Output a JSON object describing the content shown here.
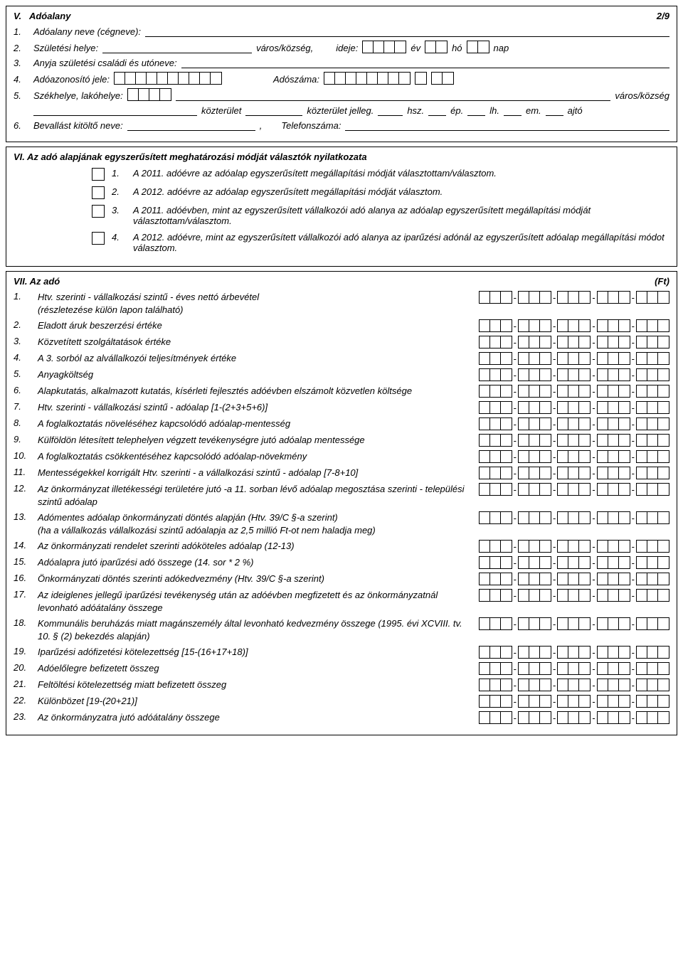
{
  "page": {
    "number": "2/9"
  },
  "sectionV": {
    "heading_num": "V.",
    "heading": "Adóalany",
    "rows": {
      "r1_num": "1.",
      "r1_label": "Adóalany neve (cégneve):",
      "r2_num": "2.",
      "r2_label": "Születési helye:",
      "r2_city": "város/község,",
      "r2_time": "ideje:",
      "r2_year": "év",
      "r2_month": "hó",
      "r2_day": "nap",
      "r3_num": "3.",
      "r3_label": "Anyja születési családi és utóneve:",
      "r4_num": "4.",
      "r4_label": "Adóazonosító jele:",
      "r4_taxnum": "Adószáma:",
      "r5_num": "5.",
      "r5_label": "Székhelye, lakóhelye:",
      "r5_city": "város/község",
      "r5b_koz": "közterület",
      "r5b_kozj": "közterület jelleg.",
      "r5b_hsz": "hsz.",
      "r5b_ep": "ép.",
      "r5b_lh": "lh.",
      "r5b_em": "em.",
      "r5b_ajto": "ajtó",
      "r6_num": "6.",
      "r6_label": "Bevallást kitöltő neve:",
      "r6_comma": ",",
      "r6_tel": "Telefonszáma:"
    }
  },
  "sectionVI": {
    "heading": "VI. Az adó alapjának egyszerűsített meghatározási módját választók nyilatkozata",
    "items": [
      {
        "num": "1.",
        "text": "A 2011. adóévre az adóalap egyszerűsített megállapítási módját választottam/választom."
      },
      {
        "num": "2.",
        "text": "A 2012. adóévre az adóalap egyszerűsített megállapítási módját választom."
      },
      {
        "num": "3.",
        "text": "A 2011. adóévben, mint az egyszerűsített vállalkozói adó alanya az adóalap egyszerűsített megállapítási módját választottam/választom."
      },
      {
        "num": "4.",
        "text": "A 2012. adóévre, mint az egyszerűsített vállalkozói adó alanya az iparűzési adónál az egyszerűsített adóalap megállapítási módot választom."
      }
    ]
  },
  "sectionVII": {
    "heading": "VII. Az adó",
    "unit": "(Ft)",
    "rows": [
      {
        "num": "1.",
        "text": "Htv. szerinti - vállalkozási szintű - éves nettó árbevétel",
        "sub": "(részletezése külön lapon található)"
      },
      {
        "num": "2.",
        "text": "Eladott áruk beszerzési értéke"
      },
      {
        "num": "3.",
        "text": "Közvetített szolgáltatások értéke"
      },
      {
        "num": "4.",
        "text": "A 3. sorból az alvállalkozói teljesítmények értéke"
      },
      {
        "num": "5.",
        "text": "Anyagköltség"
      },
      {
        "num": "6.",
        "text": "Alapkutatás, alkalmazott kutatás, kísérleti fejlesztés adóévben elszámolt közvetlen költsége"
      },
      {
        "num": "7.",
        "text": "Htv. szerinti - vállalkozási szintű - adóalap [1-(2+3+5+6)]"
      },
      {
        "num": "8.",
        "text": "A foglalkoztatás növeléséhez kapcsolódó adóalap-mentesség"
      },
      {
        "num": "9.",
        "text": "Külföldön létesített telephelyen végzett tevékenységre jutó adóalap mentessége"
      },
      {
        "num": "10.",
        "text": "A foglalkoztatás csökkentéséhez kapcsolódó adóalap-növekmény"
      },
      {
        "num": "11.",
        "text": "Mentességekkel korrigált Htv. szerinti - a vállalkozási szintű - adóalap [7-8+10]"
      },
      {
        "num": "12.",
        "text": "Az önkormányzat illetékességi területére jutó -a 11. sorban lévő adóalap megosztása szerinti - települési szintű adóalap"
      },
      {
        "num": "13.",
        "text": "Adómentes adóalap önkormányzati döntés alapján (Htv. 39/C §-a szerint)",
        "sub": "(ha a vállalkozás vállalkozási szintű adóalapja az 2,5 millió Ft-ot nem haladja meg)"
      },
      {
        "num": "14.",
        "text": "Az önkormányzati rendelet szerinti adóköteles adóalap (12-13)"
      },
      {
        "num": "15.",
        "text": "Adóalapra jutó iparűzési adó összege (14. sor * 2 %)"
      },
      {
        "num": "16.",
        "text": "Önkormányzati döntés szerinti adókedvezmény (Htv. 39/C §-a szerint)"
      },
      {
        "num": "17.",
        "text": "Az ideiglenes jellegű iparűzési tevékenység után az adóévben megfizetett és az önkormányzatnál levonható adóátalány összege"
      },
      {
        "num": "18.",
        "text": "Kommunális beruházás miatt magánszemély által levonható kedvezmény összege (1995. évi XCVIII. tv. 10. § (2) bekezdés alapján)"
      },
      {
        "num": "19.",
        "text": "Iparűzési adófizetési kötelezettség [15-(16+17+18)]"
      },
      {
        "num": "20.",
        "text": "Adóelőlegre befizetett összeg"
      },
      {
        "num": "21.",
        "text": "Feltöltési kötelezettség miatt befizetett összeg"
      },
      {
        "num": "22.",
        "text": "Különbözet [19-(20+21)]"
      },
      {
        "num": "23.",
        "text": "Az önkormányzatra jutó adóátalány összege"
      }
    ]
  },
  "style": {
    "amount_groups": [
      3,
      3,
      3,
      3,
      3
    ],
    "box_border": "#000000",
    "text_color": "#000000",
    "bg_color": "#ffffff",
    "font_family": "Arial",
    "font_size_pt": 10
  }
}
